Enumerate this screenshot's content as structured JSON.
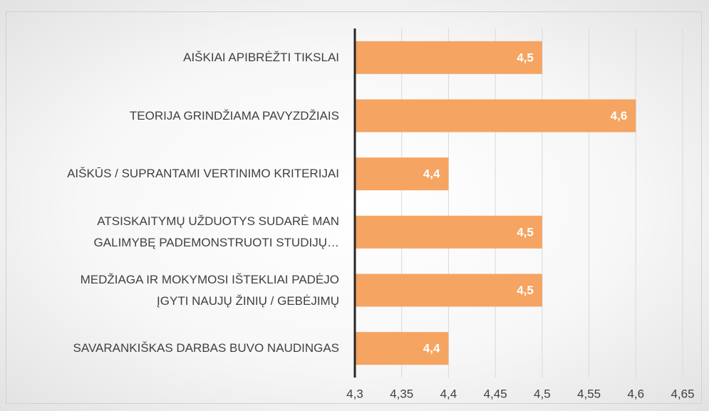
{
  "chart_data": {
    "type": "barh",
    "categories": [
      "AIŠKIAI APIBRĖŽTI TIKSLAI",
      "TEORIJA GRINDŽIAMA PAVYZDŽIAIS",
      "AIŠKŪS / SUPRANTAMI VERTINIMO KRITERIJAI",
      "ATSISKAITYMŲ UŽDUOTYS SUDARĖ MAN\nGALIMYBĘ PADEMONSTRUOTI STUDIJŲ…",
      "MEDŽIAGA IR MOKYMOSI IŠTEKLIAI PADĖJO\nĮGYTI NAUJŲ ŽINIŲ / GEBĖJIMŲ",
      "SAVARANKIŠKAS DARBAS BUVO NAUDINGAS"
    ],
    "values": [
      4.5,
      4.6,
      4.4,
      4.5,
      4.5,
      4.4
    ],
    "value_labels": [
      "4,5",
      "4,6",
      "4,4",
      "4,5",
      "4,5",
      "4,4"
    ],
    "color": "#f5a462",
    "xlim": [
      4.3,
      4.65
    ],
    "xticks": [
      {
        "value": 4.3,
        "label": "4,3"
      },
      {
        "value": 4.35,
        "label": "4,35"
      },
      {
        "value": 4.4,
        "label": "4,4"
      },
      {
        "value": 4.45,
        "label": "4,45"
      },
      {
        "value": 4.5,
        "label": "4,5"
      },
      {
        "value": 4.55,
        "label": "4,55"
      },
      {
        "value": 4.6,
        "label": "4,6"
      },
      {
        "value": 4.65,
        "label": "4,65"
      }
    ],
    "grid": true
  }
}
